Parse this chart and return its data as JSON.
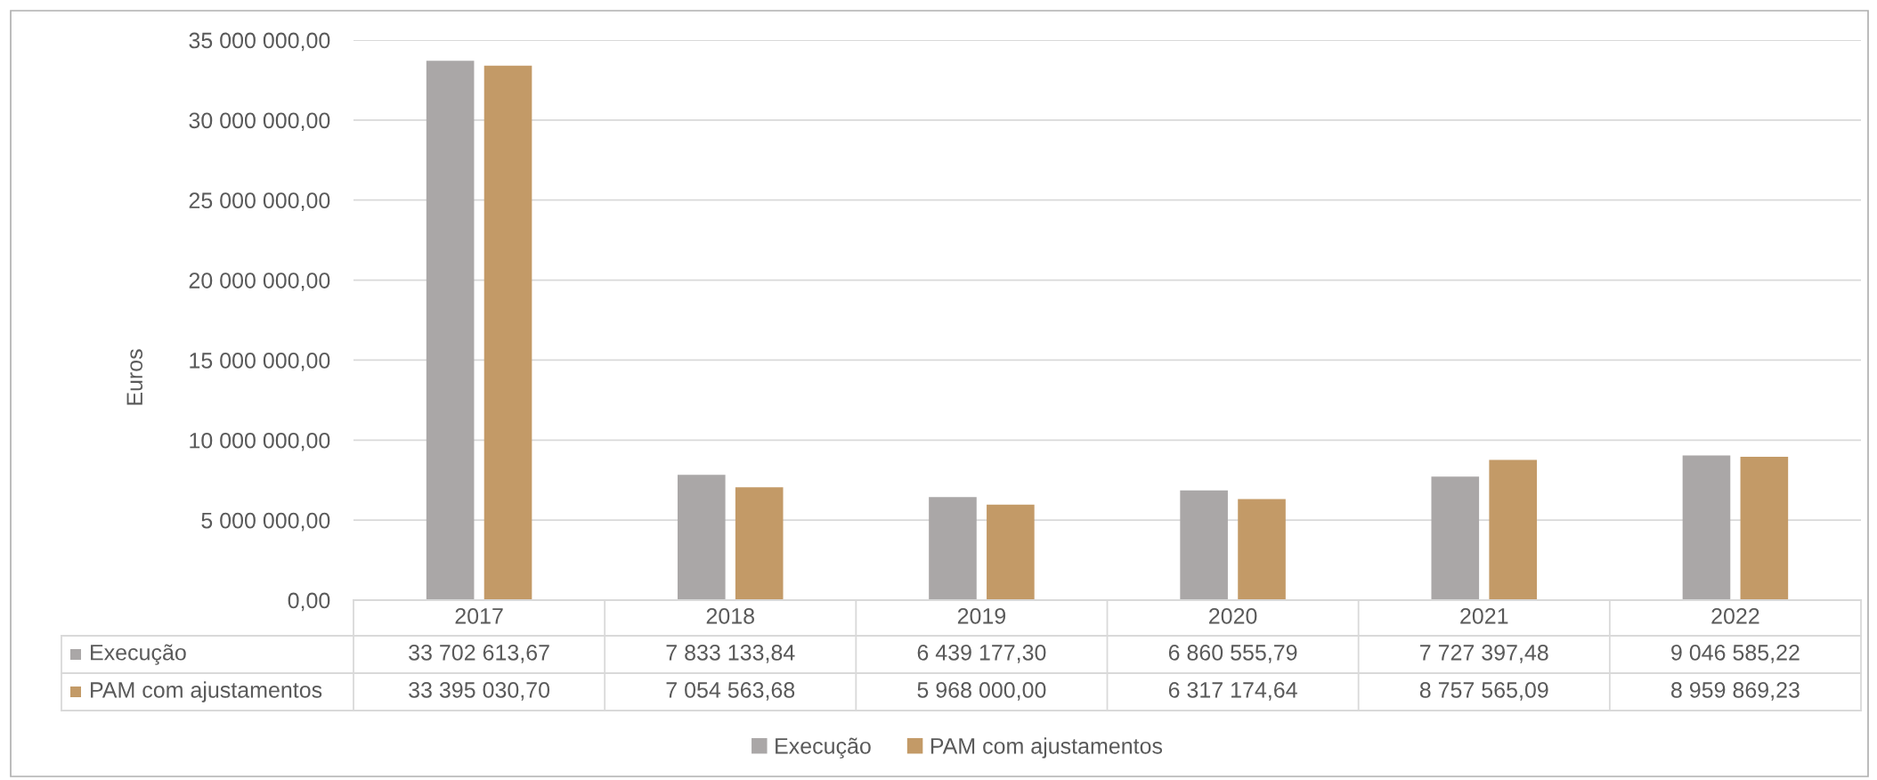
{
  "chart_data": {
    "type": "bar",
    "ylabel": "Euros",
    "categories": [
      "2017",
      "2018",
      "2019",
      "2020",
      "2021",
      "2022"
    ],
    "series": [
      {
        "name": "Execução",
        "color": "#aaa7a7",
        "values": [
          33702613.67,
          7833133.84,
          6439177.3,
          6860555.79,
          7727397.48,
          9046585.22
        ],
        "value_labels": [
          "33 702 613,67",
          "7 833 133,84",
          "6 439 177,30",
          "6 860 555,79",
          "7 727 397,48",
          "9 046 585,22"
        ]
      },
      {
        "name": "PAM com ajustamentos",
        "color": "#c39a67",
        "values": [
          33395030.7,
          7054563.68,
          5968000.0,
          6317174.64,
          8757565.09,
          8959869.23
        ],
        "value_labels": [
          "33 395 030,70",
          "7 054 563,68",
          "5 968 000,00",
          "6 317 174,64",
          "8 757 565,09",
          "8 959 869,23"
        ]
      }
    ],
    "ylim": [
      0,
      35000000
    ],
    "yticks": [
      {
        "value": 0,
        "label": "0,00"
      },
      {
        "value": 5000000,
        "label": "5 000 000,00"
      },
      {
        "value": 10000000,
        "label": "10 000 000,00"
      },
      {
        "value": 15000000,
        "label": "15 000 000,00"
      },
      {
        "value": 20000000,
        "label": "20 000 000,00"
      },
      {
        "value": 25000000,
        "label": "25 000 000,00"
      },
      {
        "value": 30000000,
        "label": "30 000 000,00"
      },
      {
        "value": 35000000,
        "label": "35 000 000,00"
      }
    ],
    "grid": "y",
    "legend": "bottom"
  }
}
